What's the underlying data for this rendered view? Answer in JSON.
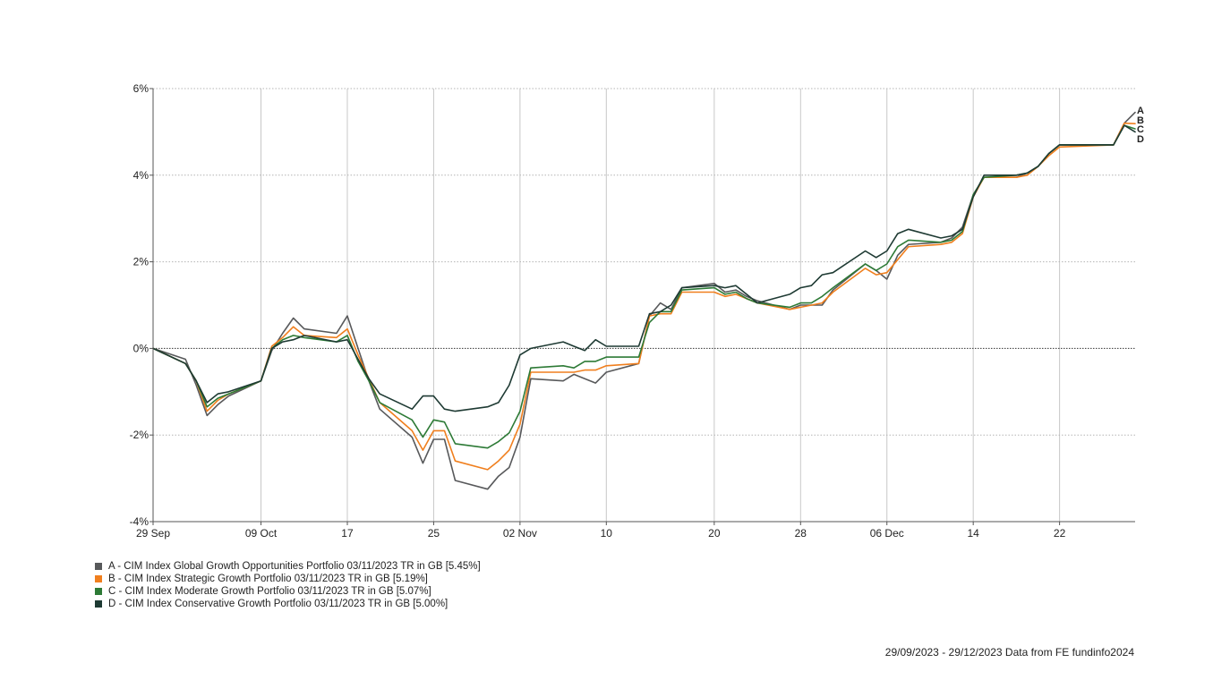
{
  "chart_data": {
    "type": "line",
    "title": "",
    "xlabel": "",
    "ylabel": "",
    "ylim": [
      -4,
      6
    ],
    "yticks": [
      -4,
      -2,
      0,
      2,
      4,
      6
    ],
    "ytick_labels": [
      "-4%",
      "-2%",
      "0%",
      "2%",
      "4%",
      "6%"
    ],
    "xlim": [
      "2023-09-29",
      "2023-12-29"
    ],
    "xticks": [
      "2023-09-29",
      "2023-10-09",
      "2023-10-17",
      "2023-10-25",
      "2023-11-02",
      "2023-11-10",
      "2023-11-20",
      "2023-11-28",
      "2023-12-06",
      "2023-12-14",
      "2023-12-22"
    ],
    "xtick_labels": [
      "29 Sep",
      "09 Oct",
      "17",
      "25",
      "02 Nov",
      "10",
      "20",
      "28",
      "06 Dec",
      "14",
      "22"
    ],
    "grid": true,
    "zero_line": "dotted",
    "legend_position": "bottom-left",
    "x": [
      "2023-09-29",
      "2023-10-02",
      "2023-10-03",
      "2023-10-04",
      "2023-10-05",
      "2023-10-06",
      "2023-10-09",
      "2023-10-10",
      "2023-10-11",
      "2023-10-12",
      "2023-10-13",
      "2023-10-16",
      "2023-10-17",
      "2023-10-18",
      "2023-10-19",
      "2023-10-20",
      "2023-10-23",
      "2023-10-24",
      "2023-10-25",
      "2023-10-26",
      "2023-10-27",
      "2023-10-30",
      "2023-10-31",
      "2023-11-01",
      "2023-11-02",
      "2023-11-03",
      "2023-11-06",
      "2023-11-07",
      "2023-11-08",
      "2023-11-09",
      "2023-11-10",
      "2023-11-13",
      "2023-11-14",
      "2023-11-15",
      "2023-11-16",
      "2023-11-17",
      "2023-11-20",
      "2023-11-21",
      "2023-11-22",
      "2023-11-23",
      "2023-11-24",
      "2023-11-27",
      "2023-11-28",
      "2023-11-29",
      "2023-11-30",
      "2023-12-01",
      "2023-12-04",
      "2023-12-05",
      "2023-12-06",
      "2023-12-07",
      "2023-12-08",
      "2023-12-11",
      "2023-12-12",
      "2023-12-13",
      "2023-12-14",
      "2023-12-15",
      "2023-12-18",
      "2023-12-19",
      "2023-12-20",
      "2023-12-21",
      "2023-12-22",
      "2023-12-27",
      "2023-12-28",
      "2023-12-29"
    ],
    "series": [
      {
        "name": "A - CIM Index Global Growth Opportunities Portfolio 03/11/2023 TR in GB [5.45%]",
        "label": "A",
        "color": "#58595b",
        "values": [
          0,
          -0.25,
          -0.85,
          -1.55,
          -1.3,
          -1.1,
          -0.75,
          -0.05,
          0.35,
          0.7,
          0.45,
          0.35,
          0.75,
          0.0,
          -0.75,
          -1.4,
          -2.05,
          -2.65,
          -2.1,
          -2.1,
          -3.05,
          -3.25,
          -2.95,
          -2.75,
          -2.05,
          -0.7,
          -0.75,
          -0.6,
          -0.7,
          -0.8,
          -0.55,
          -0.35,
          0.75,
          1.05,
          0.9,
          1.4,
          1.5,
          1.3,
          1.35,
          1.2,
          1.1,
          0.9,
          1.0,
          1.0,
          1.0,
          1.35,
          1.95,
          1.8,
          1.6,
          2.15,
          2.4,
          2.45,
          2.55,
          2.8,
          3.55,
          3.95,
          3.95,
          4.05,
          4.2,
          4.5,
          4.7,
          4.7,
          5.2,
          5.45
        ]
      },
      {
        "name": "B - CIM Index Strategic Growth Portfolio 03/11/2023 TR in GB [5.19%]",
        "label": "B",
        "color": "#f07f1e",
        "values": [
          0,
          -0.35,
          -0.75,
          -1.45,
          -1.2,
          -1.05,
          -0.75,
          0.05,
          0.25,
          0.5,
          0.3,
          0.25,
          0.45,
          -0.15,
          -0.7,
          -1.25,
          -1.9,
          -2.35,
          -1.9,
          -1.9,
          -2.6,
          -2.8,
          -2.6,
          -2.35,
          -1.75,
          -0.55,
          -0.55,
          -0.55,
          -0.5,
          -0.5,
          -0.4,
          -0.35,
          0.75,
          0.8,
          0.8,
          1.3,
          1.3,
          1.2,
          1.25,
          1.15,
          1.05,
          0.9,
          0.95,
          1.0,
          1.05,
          1.3,
          1.85,
          1.7,
          1.75,
          2.05,
          2.35,
          2.4,
          2.45,
          2.65,
          3.5,
          3.95,
          3.95,
          4.0,
          4.2,
          4.45,
          4.65,
          4.7,
          5.2,
          5.19
        ]
      },
      {
        "name": "C - CIM Index Moderate Growth Portfolio 03/11/2023 TR in GB [5.07%]",
        "label": "C",
        "color": "#2d7a36",
        "values": [
          0,
          -0.35,
          -0.75,
          -1.35,
          -1.15,
          -1.05,
          -0.75,
          0.0,
          0.2,
          0.3,
          0.25,
          0.15,
          0.3,
          -0.3,
          -0.75,
          -1.25,
          -1.65,
          -2.05,
          -1.65,
          -1.7,
          -2.2,
          -2.3,
          -2.15,
          -1.95,
          -1.45,
          -0.45,
          -0.4,
          -0.45,
          -0.3,
          -0.3,
          -0.2,
          -0.2,
          0.6,
          0.85,
          0.85,
          1.35,
          1.4,
          1.25,
          1.3,
          1.15,
          1.05,
          0.95,
          1.05,
          1.05,
          1.2,
          1.4,
          1.95,
          1.8,
          1.95,
          2.35,
          2.5,
          2.45,
          2.5,
          2.7,
          3.55,
          3.95,
          4.0,
          4.05,
          4.2,
          4.5,
          4.7,
          4.7,
          5.15,
          5.07
        ]
      },
      {
        "name": "D - CIM Index Conservative Growth Portfolio 03/11/2023 TR in GB [5.00%]",
        "label": "D",
        "color": "#1e3a33",
        "values": [
          0,
          -0.35,
          -0.75,
          -1.25,
          -1.05,
          -1.0,
          -0.75,
          0.0,
          0.15,
          0.2,
          0.3,
          0.15,
          0.2,
          -0.25,
          -0.7,
          -1.05,
          -1.4,
          -1.1,
          -1.1,
          -1.4,
          -1.45,
          -1.35,
          -1.25,
          -0.85,
          -0.15,
          0.0,
          0.15,
          0.05,
          -0.05,
          0.2,
          0.05,
          0.05,
          0.8,
          0.85,
          1.0,
          1.4,
          1.45,
          1.4,
          1.45,
          1.25,
          1.05,
          1.25,
          1.4,
          1.45,
          1.7,
          1.75,
          2.25,
          2.1,
          2.25,
          2.65,
          2.75,
          2.55,
          2.6,
          2.75,
          3.5,
          4.0,
          4.0,
          4.05,
          4.2,
          4.5,
          4.7,
          4.7,
          5.15,
          5.0
        ]
      }
    ]
  },
  "footer": "29/09/2023 - 29/12/2023 Data from FE fundinfo2024"
}
